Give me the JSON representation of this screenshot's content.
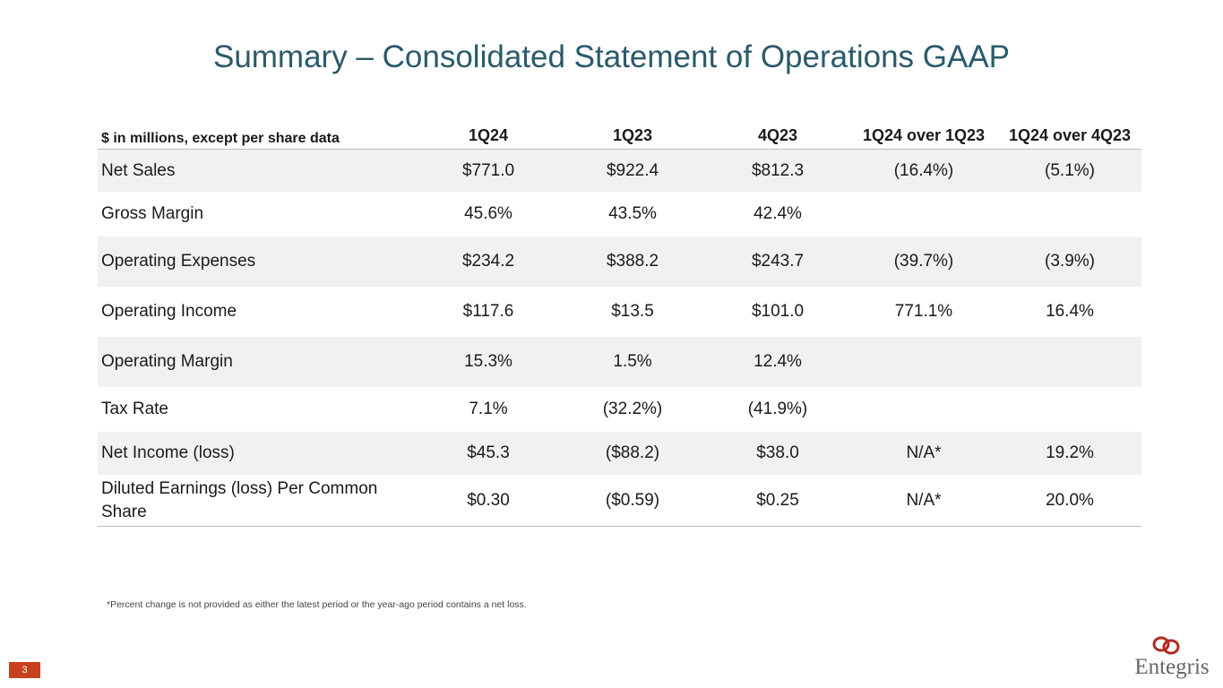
{
  "title": "Summary – Consolidated Statement of Operations GAAP",
  "table": {
    "header": [
      "$ in millions, except per share data",
      "1Q24",
      "1Q23",
      "4Q23",
      "1Q24 over 1Q23",
      "1Q24 over 4Q23"
    ],
    "rows": [
      [
        "Net Sales",
        "$771.0",
        "$922.4",
        "$812.3",
        "(16.4%)",
        "(5.1%)"
      ],
      [
        "Gross Margin",
        "45.6%",
        "43.5%",
        "42.4%"
      ],
      [
        "Operating Expenses",
        "$234.2",
        "$388.2",
        "$243.7",
        "(39.7%)",
        "(3.9%)"
      ],
      [
        "Operating Income",
        "$117.6",
        "$13.5",
        "$101.0",
        "771.1%",
        "16.4%"
      ],
      [
        "Operating Margin",
        "15.3%",
        "1.5%",
        "12.4%"
      ],
      [
        "Tax Rate",
        "7.1%",
        "(32.2%)",
        "(41.9%)"
      ],
      [
        "Net Income (loss)",
        "$45.3",
        "($88.2)",
        "$38.0",
        "N/A*",
        "19.2%"
      ],
      [
        "Diluted Earnings (loss) Per Common Share",
        "$0.30",
        "($0.59)",
        "$0.25",
        "N/A*",
        "20.0%"
      ]
    ]
  },
  "footnote": "*Percent change is not provided as either the latest period or the year-ago period contains a net loss.",
  "page_number": "3",
  "logo": "Entegris"
}
